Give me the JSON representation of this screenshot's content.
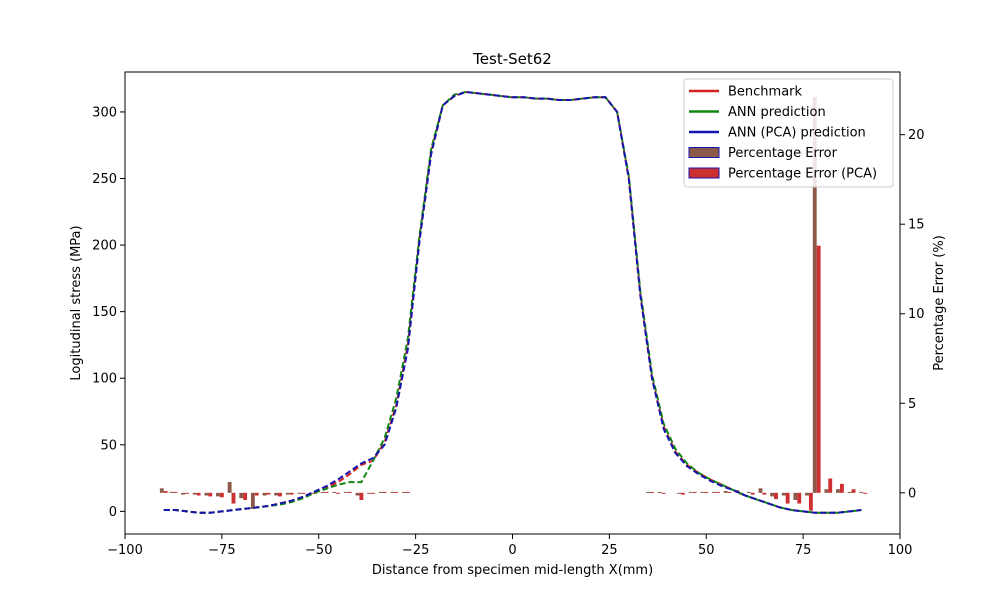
{
  "chart_data": {
    "type": "line",
    "title": "Test-Set62",
    "xlabel": "Distance from specimen mid-length X(mm)",
    "ylabel": "Logitudinal stress (MPa)",
    "y2label": "Percentage Error (%)",
    "xlim": [
      -100,
      100
    ],
    "ylim": [
      -17,
      330
    ],
    "y2lim": [
      -2.3,
      23.5
    ],
    "x_ticks": [
      -100,
      -75,
      -50,
      -25,
      0,
      25,
      50,
      75,
      100
    ],
    "y_ticks": [
      0,
      50,
      100,
      150,
      200,
      250,
      300
    ],
    "y2_ticks": [
      0,
      5,
      10,
      15,
      20
    ],
    "legend_position": "top-right",
    "grid": false,
    "x": [
      -90,
      -87,
      -84,
      -81,
      -78,
      -75,
      -72,
      -69,
      -66,
      -63,
      -60,
      -57,
      -54,
      -51,
      -48,
      -45,
      -42,
      -39,
      -36,
      -33,
      -30,
      -27,
      -24,
      -21,
      -18,
      -15,
      -12,
      -9,
      -6,
      -3,
      0,
      3,
      6,
      9,
      12,
      15,
      18,
      21,
      24,
      27,
      30,
      33,
      36,
      39,
      42,
      45,
      48,
      51,
      54,
      57,
      60,
      63,
      66,
      69,
      72,
      75,
      78,
      81,
      84,
      87,
      90
    ],
    "series": [
      {
        "name": "Benchmark",
        "color": "#d62020",
        "style": "dashed",
        "values": [
          1,
          1,
          0,
          -1,
          -1,
          0,
          1,
          2,
          3,
          4,
          6,
          8,
          11,
          14,
          18,
          22,
          28,
          35,
          38,
          52,
          80,
          125,
          205,
          270,
          305,
          312,
          315,
          314,
          313,
          312,
          311,
          311,
          310,
          310,
          309,
          309,
          310,
          311,
          311,
          300,
          250,
          162,
          100,
          64,
          45,
          35,
          29,
          24,
          20,
          16,
          12,
          9,
          6,
          3,
          1,
          0,
          -1,
          -1,
          -1,
          0,
          1
        ]
      },
      {
        "name": "ANN prediction",
        "color": "#118811",
        "style": "dashed",
        "values": [
          1,
          1,
          0,
          -1,
          -1,
          0,
          1,
          2,
          3,
          4,
          5,
          7,
          10,
          14,
          17,
          20,
          22,
          22,
          38,
          55,
          85,
          130,
          207,
          272,
          305,
          313,
          315,
          314,
          313,
          312,
          311,
          311,
          310,
          310,
          309,
          309,
          310,
          311,
          311,
          300,
          252,
          165,
          103,
          66,
          47,
          36,
          29,
          24,
          20,
          16,
          12,
          9,
          6,
          3,
          1,
          0,
          -1,
          -1,
          -1,
          0,
          1
        ]
      },
      {
        "name": "ANN (PCA) prediction",
        "color": "#1515b0",
        "style": "dashed",
        "values": [
          1,
          1,
          0,
          -1,
          -1,
          0,
          1,
          2,
          3,
          4,
          6,
          8,
          11,
          15,
          19,
          24,
          30,
          36,
          40,
          50,
          78,
          122,
          203,
          268,
          305,
          312,
          315,
          314,
          313,
          312,
          311,
          311,
          310,
          310,
          309,
          309,
          310,
          311,
          311,
          300,
          250,
          162,
          100,
          62,
          44,
          34,
          28,
          23,
          19,
          16,
          12,
          9,
          6,
          3,
          1,
          0,
          -1,
          -1,
          -1,
          0,
          1
        ]
      }
    ],
    "bar_series": [
      {
        "name": "Percentage Error",
        "color": "#8b5a4a",
        "edge": "#1515b0",
        "x": [
          -90.5,
          -88,
          -85,
          -82,
          -79,
          -76,
          -73,
          -70,
          -67,
          -64,
          -61,
          -58,
          -55,
          -52,
          -49,
          -46,
          -43,
          -40,
          -37,
          -34,
          -31,
          -28,
          35,
          38,
          43,
          46,
          49,
          52,
          55,
          58,
          61,
          64,
          67,
          70,
          73,
          76,
          78,
          81,
          84,
          87,
          90
        ],
        "values": [
          0.25,
          0.05,
          -0.1,
          -0.1,
          -0.15,
          -0.2,
          0.6,
          -0.3,
          -0.9,
          -0.15,
          -0.15,
          -0.1,
          -0.05,
          -0.05,
          0.05,
          0.05,
          0.05,
          -0.15,
          -0.05,
          0.05,
          0.05,
          0.05,
          0.05,
          0.05,
          -0.05,
          0.05,
          0.05,
          0.05,
          0.1,
          0.15,
          0.05,
          0.25,
          -0.2,
          -0.15,
          -0.4,
          -0.15,
          22.1,
          0.2,
          0.2,
          0.05,
          0.05
        ]
      },
      {
        "name": "Percentage Error (PCA)",
        "color": "#cc3030",
        "edge": "#1515b0",
        "x": [
          -89.5,
          -87,
          -84,
          -81,
          -78,
          -75,
          -72,
          -69,
          -66,
          -63,
          -60,
          -57,
          -54,
          -51,
          -48,
          -45,
          -42,
          -39,
          -36,
          -33,
          -30,
          -27,
          36,
          39,
          44,
          47,
          50,
          53,
          56,
          59,
          62,
          65,
          68,
          71,
          74,
          77,
          79,
          82,
          85,
          88,
          91
        ],
        "values": [
          0.1,
          0.05,
          -0.05,
          -0.15,
          -0.2,
          -0.25,
          -0.6,
          -0.4,
          -0.15,
          -0.1,
          -0.2,
          -0.1,
          -0.05,
          -0.05,
          0.05,
          -0.05,
          0.05,
          -0.4,
          -0.05,
          0.05,
          0.05,
          0.05,
          0.05,
          -0.05,
          -0.1,
          0.05,
          0.05,
          0.05,
          0.05,
          -0.1,
          -0.1,
          -0.1,
          -0.35,
          -0.6,
          -0.6,
          -1.0,
          13.8,
          0.8,
          0.5,
          0.2,
          -0.05
        ]
      }
    ]
  }
}
